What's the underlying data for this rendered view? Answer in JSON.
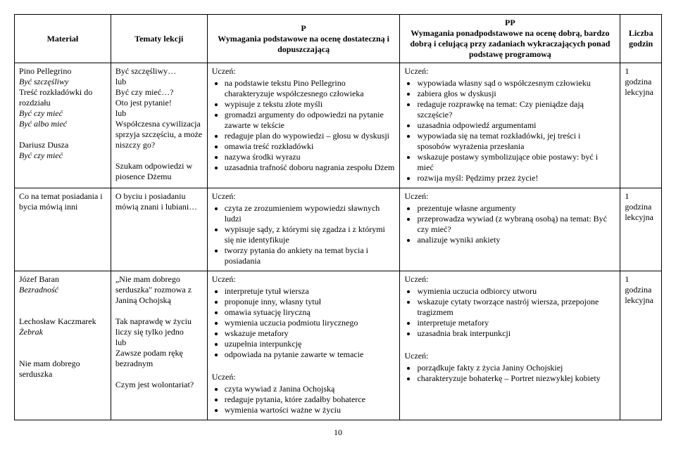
{
  "header": {
    "col1": "Materiał",
    "col2": "Tematy lekcji",
    "col3_line1": "P",
    "col3_line2": "Wymagania podstawowe na ocenę dostateczną i dopuszczającą",
    "col4_line1": "PP",
    "col4_line2": "Wymagania ponadpodstawowe na ocenę dobrą, bardzo dobrą i celującą przy zadaniach wykraczających ponad podstawę programową",
    "col5": "Liczba godzin"
  },
  "rows": [
    {
      "material_parts": [
        {
          "t": "Pino Pellegrino",
          "i": false
        },
        {
          "t": "Być szczęśliwy",
          "i": true
        },
        {
          "t": "Treść rozkładówki do rozdziału",
          "i": false
        },
        {
          "t": "Być czy mieć",
          "i": true
        },
        {
          "t": "Być albo mieć",
          "i": true
        },
        {
          "t": "",
          "i": false
        },
        {
          "t": "Dariusz Dusza",
          "i": false
        },
        {
          "t": "Być czy mieć",
          "i": true
        }
      ],
      "topic_parts": [
        {
          "t": "Być szczęśliwy…",
          "i": false
        },
        {
          "t": "lub",
          "i": false
        },
        {
          "t": "Być czy mieć…?",
          "i": false
        },
        {
          "t": "Oto jest pytanie!",
          "i": false
        },
        {
          "t": "lub",
          "i": false
        },
        {
          "t": "Współczesna cywilizacja sprzyja szczęściu, a może niszczy go?",
          "i": false
        },
        {
          "t": "",
          "i": false
        },
        {
          "t": "Szukam odpowiedzi w piosence Dżemu",
          "i": false
        }
      ],
      "p_label": "Uczeń:",
      "p_items": [
        "na podstawie tekstu Pino Pellegrino charakteryzuje współczesnego człowieka",
        "wypisuje z tekstu złote myśli",
        "gromadzi argumenty do odpowiedzi na pytanie zawarte w tekście",
        "redaguje plan do wypowiedzi – głosu w dyskusji",
        "omawia treść rozkładówki",
        "nazywa środki wyrazu",
        "uzasadnia trafność doboru nagrania zespołu Dżem"
      ],
      "pp_label": "Uczeń:",
      "pp_items": [
        "wypowiada własny sąd o współczesnym człowieku",
        "zabiera głos w dyskusji",
        "redaguje rozprawkę na temat: Czy pieniądze dają szczęście?",
        "uzasadnia odpowiedź argumentami",
        "wypowiada się na temat rozkładówki, jej treści i sposobów wyrażenia przesłania",
        "wskazuje postawy symbolizujące obie postawy: być i mieć",
        "rozwija myśl: Pędzimy przez życie!"
      ],
      "hours": "1 godzina lekcyjna"
    },
    {
      "material_parts": [
        {
          "t": "Co na temat posiadania i bycia mówią inni",
          "i": false
        }
      ],
      "topic_parts": [
        {
          "t": "O byciu i posiadaniu mówią znani i lubiani…",
          "i": false
        }
      ],
      "p_label": "Uczeń:",
      "p_items": [
        "czyta ze zrozumieniem wypowiedzi sławnych ludzi",
        "wypisuje sądy, z którymi się zgadza i z którymi się nie identyfikuje",
        "tworzy pytania do ankiety na temat bycia i posiadania"
      ],
      "pp_label": "Uczeń:",
      "pp_items": [
        "prezentuje własne argumenty",
        "przeprowadza wywiad (z wybraną osobą) na temat: Być czy mieć?",
        "analizuje wyniki ankiety"
      ],
      "hours": "1 godzina lekcyjna"
    }
  ],
  "group2": {
    "material_parts": [
      {
        "t": "Józef Baran",
        "i": false
      },
      {
        "t": "Bezradność",
        "i": true
      },
      {
        "t": "",
        "i": false
      },
      {
        "t": "",
        "i": false
      },
      {
        "t": "Lechosław Kaczmarek",
        "i": false
      },
      {
        "t": "Żebrak",
        "i": true
      },
      {
        "t": "",
        "i": false
      },
      {
        "t": "",
        "i": false
      },
      {
        "t": "Nie mam dobrego serduszka",
        "i": false
      }
    ],
    "topic_parts": [
      {
        "t": "„Nie mam dobrego serduszka\" rozmowa z Janiną Ochojską",
        "i": false
      },
      {
        "t": "",
        "i": false
      },
      {
        "t": "Tak naprawdę w życiu liczy się tylko jedno",
        "i": false
      },
      {
        "t": "lub",
        "i": false
      },
      {
        "t": "Zawsze podam rękę bezradnym",
        "i": false
      },
      {
        "t": "",
        "i": false
      },
      {
        "t": "Czym jest wolontariat?",
        "i": false
      }
    ],
    "p1_label": "Uczeń:",
    "p1_items": [
      "interpretuje tytuł wiersza",
      "proponuje inny, własny tytuł",
      "omawia sytuację liryczną",
      "wymienia uczucia podmiotu lirycznego",
      "wskazuje metafory",
      "uzupełnia interpunkcję",
      "odpowiada na pytanie zawarte w temacie"
    ],
    "p2_label": "Uczeń:",
    "p2_items": [
      "czyta wywiad z Janina Ochojską",
      "redaguje pytania, które zadałby bohaterce",
      "wymienia wartości ważne w życiu"
    ],
    "pp1_label": "Uczeń:",
    "pp1_items": [
      "wymienia uczucia odbiorcy utworu",
      "wskazuje cytaty tworzące nastrój wiersza, przepojone tragizmem",
      "interpretuje metafory",
      "uzasadnia brak interpunkcji"
    ],
    "pp2_label": "Uczeń:",
    "pp2_items": [
      "porządkuje fakty z życia Janiny Ochojskiej",
      "charakteryzuje bohaterkę – Portret niezwykłej kobiety"
    ],
    "hours": "1 godzina lekcyjna"
  },
  "page_number": "10"
}
